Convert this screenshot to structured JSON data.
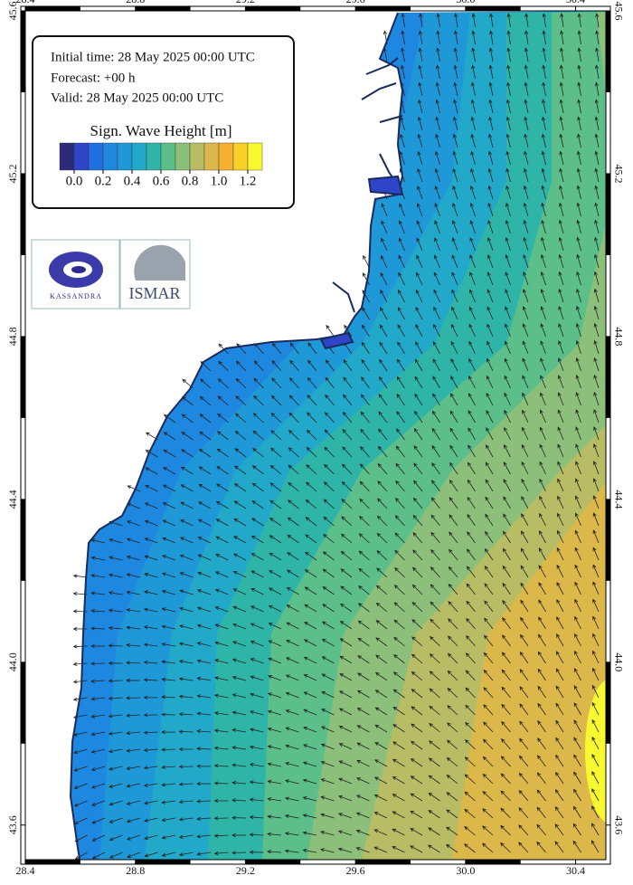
{
  "info": {
    "lines": [
      "Initial time: 28 May 2025 00:00 UTC",
      "Forecast: +00 h",
      "Valid: 28 May 2025 00:00 UTC"
    ]
  },
  "legend": {
    "title": "Sign. Wave Height [m]",
    "colors": [
      "#2d2a7a",
      "#2e45c8",
      "#1f6fe0",
      "#1e88e0",
      "#1f98d8",
      "#22a8c8",
      "#2eb5a8",
      "#5cbf8a",
      "#8cc07a",
      "#b8bc64",
      "#dcb84a",
      "#f6b032",
      "#f8d028",
      "#f8f830"
    ],
    "lim": [
      -0.1,
      1.3
    ],
    "ticks": [
      {
        "value": 0,
        "label": "0.0"
      },
      0.2,
      0.4,
      0.6,
      0.8,
      {
        "value": 1,
        "label": "1.0"
      },
      1.2
    ]
  },
  "map": {
    "xlim": [
      28.4,
      30.51
    ],
    "ylim": [
      43.515,
      45.6
    ],
    "xticks": [
      28.4,
      28.8,
      29.2,
      29.6,
      {
        "value": 30,
        "label": "30.0"
      },
      30.4
    ],
    "yticks": [
      43.6,
      {
        "value": 44,
        "label": "44.0"
      },
      44.4,
      44.8,
      45.2,
      45.6
    ]
  },
  "logos": [
    "KASSANDRA",
    "ISMAR"
  ]
}
